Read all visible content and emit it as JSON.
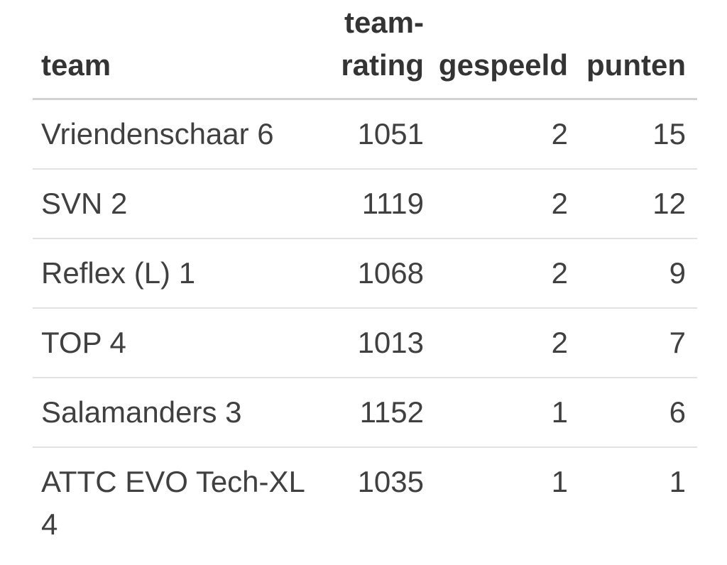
{
  "table": {
    "columns": [
      {
        "key": "team",
        "label": "team",
        "align": "left"
      },
      {
        "key": "team_rating",
        "label": "team-rating",
        "align": "right"
      },
      {
        "key": "gespeeld",
        "label": "gespeeld",
        "align": "right"
      },
      {
        "key": "punten",
        "label": "punten",
        "align": "right"
      }
    ],
    "rows": [
      {
        "team": "Vriendenschaar 6",
        "team_rating": "1051",
        "gespeeld": "2",
        "punten": "15"
      },
      {
        "team": "SVN 2",
        "team_rating": "1119",
        "gespeeld": "2",
        "punten": "12"
      },
      {
        "team": "Reflex (L) 1",
        "team_rating": "1068",
        "gespeeld": "2",
        "punten": "9"
      },
      {
        "team": "TOP 4",
        "team_rating": "1013",
        "gespeeld": "2",
        "punten": "7"
      },
      {
        "team": "Salamanders 3",
        "team_rating": "1152",
        "gespeeld": "1",
        "punten": "6"
      },
      {
        "team": "ATTC EVO Tech-XL 4",
        "team_rating": "1035",
        "gespeeld": "1",
        "punten": "1"
      }
    ]
  },
  "chart_data": {
    "type": "table",
    "title": "",
    "columns": [
      "team",
      "team-rating",
      "gespeeld",
      "punten"
    ],
    "rows": [
      [
        "Vriendenschaar 6",
        1051,
        2,
        15
      ],
      [
        "SVN 2",
        1119,
        2,
        12
      ],
      [
        "Reflex (L) 1",
        1068,
        2,
        9
      ],
      [
        "TOP 4",
        1013,
        2,
        7
      ],
      [
        "Salamanders 3",
        1152,
        1,
        6
      ],
      [
        "ATTC EVO Tech-XL 4",
        1035,
        1,
        1
      ]
    ]
  },
  "colors": {
    "header_text": "#343434",
    "body_text": "#404040",
    "header_border": "#d2d2d2",
    "row_border": "#e2e2e2",
    "background": "#ffffff"
  }
}
